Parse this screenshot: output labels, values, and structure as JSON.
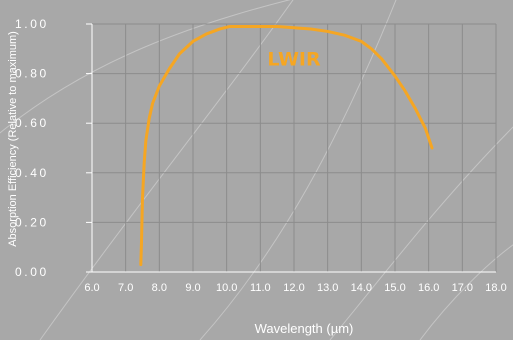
{
  "chart_data": {
    "type": "line",
    "title": "",
    "xlabel": "Wavelength (µm)",
    "ylabel": "Absorption Efficiency (Relative to maximum)",
    "xlim": [
      6.0,
      18.0
    ],
    "ylim": [
      0.0,
      1.0
    ],
    "x_ticks": [
      "6.0",
      "7.0",
      "8.0",
      "9.0",
      "10.0",
      "11.0",
      "12.0",
      "13.0",
      "14.0",
      "15.0",
      "16.0",
      "17.0",
      "18.0"
    ],
    "y_ticks": [
      "0.00",
      "0.20",
      "0.40",
      "0.60",
      "0.80",
      "1.00"
    ],
    "grid": true,
    "annotations": [
      {
        "text": "LWIR",
        "x": 12.0,
        "y": 0.86,
        "color": "#f5a623"
      }
    ],
    "series": [
      {
        "color": "#f5a623",
        "x": [
          7.45,
          7.47,
          7.5,
          7.55,
          7.6,
          7.7,
          7.8,
          8.0,
          8.3,
          8.6,
          9.0,
          9.4,
          9.8,
          10.1,
          10.5,
          11.0,
          11.5,
          12.0,
          12.5,
          13.0,
          13.5,
          14.0,
          14.3,
          14.6,
          15.0,
          15.3,
          15.6,
          15.9,
          16.1
        ],
        "y": [
          0.03,
          0.12,
          0.3,
          0.44,
          0.53,
          0.62,
          0.68,
          0.75,
          0.82,
          0.88,
          0.93,
          0.96,
          0.98,
          0.99,
          0.99,
          0.99,
          0.99,
          0.985,
          0.98,
          0.97,
          0.955,
          0.93,
          0.9,
          0.86,
          0.79,
          0.73,
          0.66,
          0.58,
          0.5
        ]
      }
    ]
  }
}
